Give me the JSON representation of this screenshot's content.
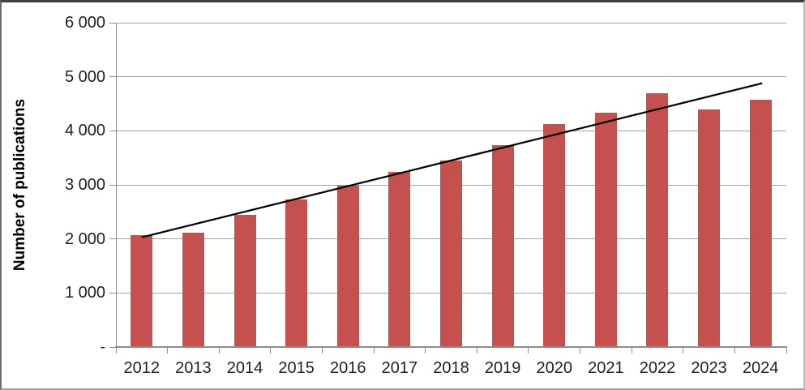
{
  "chart_data": {
    "type": "bar",
    "title": "",
    "xlabel": "",
    "ylabel": "Number of publications",
    "categories": [
      "2012",
      "2013",
      "2014",
      "2015",
      "2016",
      "2017",
      "2018",
      "2019",
      "2020",
      "2021",
      "2022",
      "2023",
      "2024"
    ],
    "values": [
      2070,
      2110,
      2440,
      2730,
      2980,
      3240,
      3450,
      3730,
      4120,
      4330,
      4700,
      4400,
      4580
    ],
    "ylim": [
      0,
      6000
    ],
    "y_tick_interval": 1000,
    "y_tick_labels_top_to_bottom": [
      "6 000",
      "5 000",
      "4 000",
      "3 000",
      "2 000",
      "1 000",
      "-"
    ],
    "grid": "horizontal",
    "legend": "none",
    "bar_color": "#c4514d",
    "gridline_color": "#a2a2a2",
    "axis_color": "#8c8c8c",
    "text_color": "#1f1f1f",
    "trendline": {
      "type": "linear",
      "color": "#000000",
      "start_category": "2012",
      "start_value": 2030,
      "end_category": "2024",
      "end_value": 4880
    }
  }
}
